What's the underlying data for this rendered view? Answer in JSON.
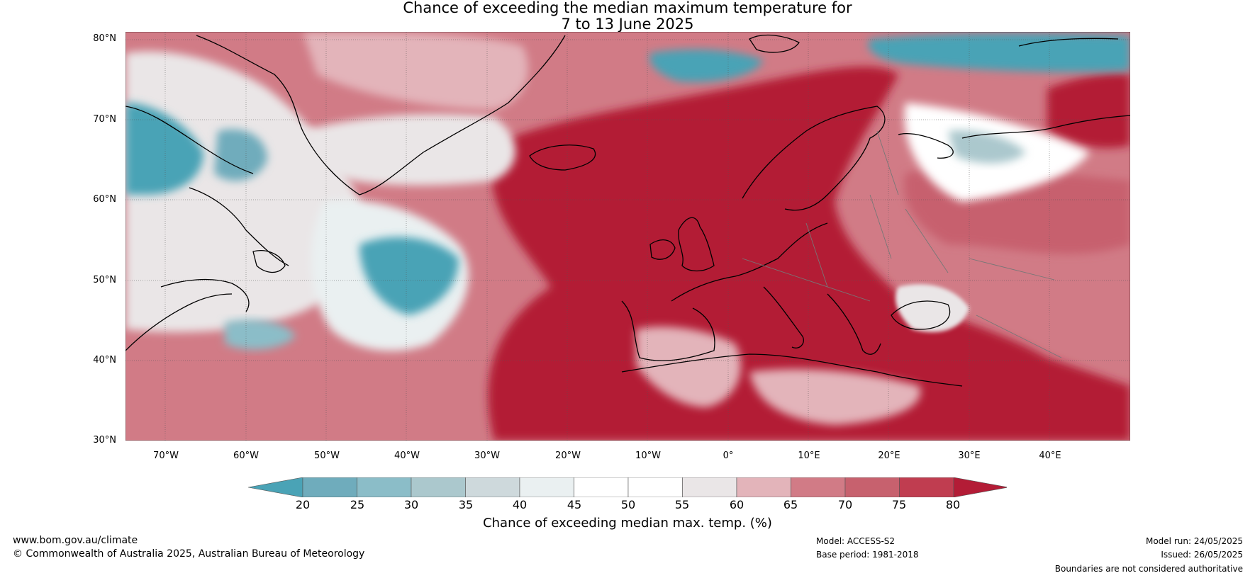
{
  "title": {
    "line1": "Chance of exceeding the median maximum temperature for",
    "line2": "7 to 13 June 2025"
  },
  "map": {
    "latitude_labels": [
      "80°N",
      "70°N",
      "60°N",
      "50°N",
      "40°N",
      "30°N"
    ],
    "longitude_labels": [
      "70°W",
      "60°W",
      "50°W",
      "40°W",
      "30°W",
      "20°W",
      "10°W",
      "0°",
      "10°E",
      "20°E",
      "30°E",
      "40°E"
    ],
    "lon_range": [
      -75,
      50
    ],
    "lat_range": [
      30,
      81
    ],
    "ocean_dominant_color": "#b31c36",
    "cool_color": "#4aa3b6"
  },
  "colorbar": {
    "title": "Chance of exceeding median max. temp. (%)",
    "tick_labels": [
      "20",
      "25",
      "30",
      "35",
      "40",
      "45",
      "50",
      "55",
      "60",
      "65",
      "70",
      "75",
      "80"
    ],
    "colors": [
      "#4aa3b6",
      "#6facbc",
      "#8bbdc8",
      "#abc8cd",
      "#ced9dc",
      "#eaf0f1",
      "#ffffff",
      "#ffffff",
      "#eae6e7",
      "#e3b4ba",
      "#d17b86",
      "#c7616e",
      "#c03d50",
      "#b31c36"
    ]
  },
  "footer": {
    "website": "www.bom.gov.au/climate",
    "copyright": "© Commonwealth of Australia 2025, Australian Bureau of Meteorology",
    "model": "Model: ACCESS-S2",
    "base_period": "Base period: 1981-2018",
    "model_run": "Model run: 24/05/2025",
    "issued": "Issued: 26/05/2025",
    "disclaimer": "Boundaries are not considered authoritative"
  }
}
